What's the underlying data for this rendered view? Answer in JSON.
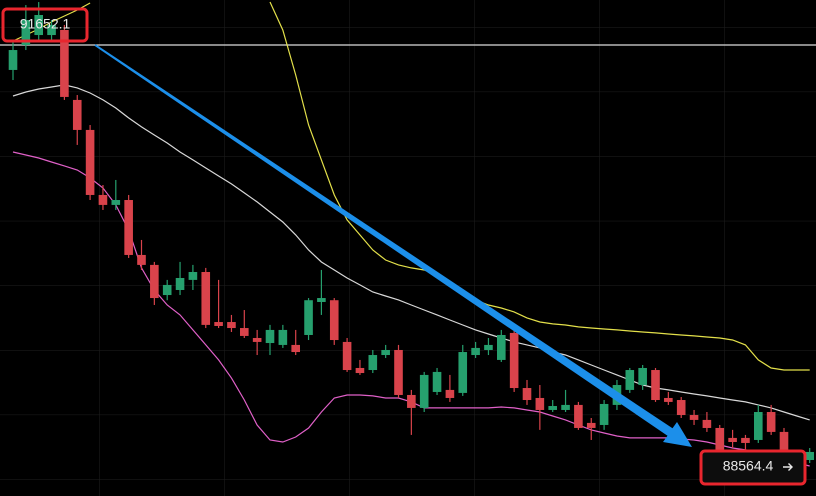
{
  "chart_data": {
    "type": "candlestick",
    "ylim": [
      88344,
      91982
    ],
    "up_color": "#26a06e",
    "down_color": "#d9434b",
    "candles": [
      [
        91469,
        91689,
        91395,
        91615
      ],
      [
        91652,
        91945,
        91615,
        91835
      ],
      [
        91725,
        91967,
        91689,
        91872
      ],
      [
        91725,
        91835,
        91689,
        91799
      ],
      [
        91762,
        91799,
        91249,
        91271
      ],
      [
        91249,
        91285,
        90919,
        91029
      ],
      [
        91029,
        91065,
        90515,
        90552
      ],
      [
        90552,
        90625,
        90442,
        90479
      ],
      [
        90479,
        90662,
        90442,
        90515
      ],
      [
        90515,
        90552,
        90090,
        90112
      ],
      [
        90112,
        90222,
        90002,
        90039
      ],
      [
        90039,
        90061,
        89745,
        89796
      ],
      [
        89818,
        89929,
        89780,
        89892
      ],
      [
        89855,
        90061,
        89818,
        89943
      ],
      [
        89929,
        90039,
        89855,
        89987
      ],
      [
        89987,
        90017,
        89576,
        89599
      ],
      [
        89620,
        89929,
        89576,
        89591
      ],
      [
        89620,
        89672,
        89547,
        89576
      ],
      [
        89576,
        89708,
        89503,
        89518
      ],
      [
        89503,
        89562,
        89378,
        89474
      ],
      [
        89466,
        89599,
        89378,
        89562
      ],
      [
        89452,
        89599,
        89430,
        89562
      ],
      [
        89452,
        89562,
        89378,
        89400
      ],
      [
        89525,
        89796,
        89488,
        89780
      ],
      [
        89767,
        90002,
        89672,
        89796
      ],
      [
        89780,
        89796,
        89452,
        89488
      ],
      [
        89474,
        89503,
        89254,
        89268
      ],
      [
        89283,
        89342,
        89232,
        89246
      ],
      [
        89268,
        89415,
        89246,
        89378
      ],
      [
        89378,
        89452,
        89356,
        89415
      ],
      [
        89415,
        89452,
        89063,
        89085
      ],
      [
        89085,
        89122,
        88792,
        88990
      ],
      [
        88990,
        89254,
        88960,
        89232
      ],
      [
        89107,
        89283,
        89085,
        89254
      ],
      [
        89122,
        89232,
        89034,
        89063
      ],
      [
        89100,
        89452,
        89078,
        89400
      ],
      [
        89378,
        89474,
        89356,
        89430
      ],
      [
        89415,
        89503,
        89378,
        89452
      ],
      [
        89342,
        89562,
        89327,
        89525
      ],
      [
        89540,
        89562,
        89107,
        89136
      ],
      [
        89136,
        89195,
        89012,
        89048
      ],
      [
        89063,
        89158,
        88829,
        88975
      ],
      [
        88975,
        89048,
        88960,
        89004
      ],
      [
        88975,
        89122,
        88960,
        89012
      ],
      [
        89012,
        89034,
        88829,
        88843
      ],
      [
        88880,
        88916,
        88755,
        88843
      ],
      [
        88865,
        89048,
        88829,
        89019
      ],
      [
        89012,
        89195,
        88975,
        89158
      ],
      [
        89122,
        89283,
        89100,
        89268
      ],
      [
        89158,
        89305,
        89122,
        89283
      ],
      [
        89268,
        89283,
        89034,
        89048
      ],
      [
        89063,
        89107,
        89012,
        89034
      ],
      [
        89048,
        89070,
        88916,
        88938
      ],
      [
        88938,
        88975,
        88865,
        88902
      ],
      [
        88902,
        88960,
        88814,
        88843
      ],
      [
        88843,
        88865,
        88667,
        88682
      ],
      [
        88770,
        88829,
        88696,
        88740
      ],
      [
        88770,
        88792,
        88682,
        88733
      ],
      [
        88755,
        89012,
        88733,
        88960
      ],
      [
        88960,
        89012,
        88792,
        88814
      ],
      [
        88814,
        88843,
        88572,
        88608
      ],
      [
        88645,
        88682,
        88572,
        88594
      ],
      [
        88608,
        88696,
        88586,
        88667
      ]
    ],
    "series": [
      {
        "color": "#d8d8d8",
        "values": [
          91278,
          91307,
          91329,
          91344,
          91359,
          91337,
          91300,
          91249,
          91190,
          91117,
          91051,
          90992,
          90933,
          90867,
          90809,
          90750,
          90691,
          90633,
          90567,
          90501,
          90427,
          90354,
          90259,
          90148,
          90060,
          90002,
          89943,
          89892,
          89840,
          89811,
          89782,
          89745,
          89708,
          89672,
          89635,
          89598,
          89562,
          89532,
          89503,
          89474,
          89452,
          89430,
          89400,
          89378,
          89342,
          89305,
          89268,
          89232,
          89195,
          89158,
          89136,
          89122,
          89107,
          89092,
          89078,
          89063,
          89048,
          89034,
          89012,
          88990,
          88960,
          88931,
          88902
        ]
      },
      {
        "color": "#e3e04a",
        "values": [
          91681,
          91725,
          91769,
          91821,
          91865,
          91909,
          91960,
          null,
          null,
          null,
          null,
          null,
          null,
          null,
          null,
          null,
          null,
          null,
          null,
          null,
          91967,
          91762,
          91432,
          91065,
          90809,
          90552,
          90369,
          90259,
          90148,
          90075,
          90039,
          90017,
          90002,
          89965,
          89892,
          89833,
          89782,
          89745,
          89723,
          89694,
          89650,
          89620,
          89606,
          89598,
          89584,
          89576,
          89569,
          89562,
          89554,
          89547,
          89540,
          89532,
          89525,
          89518,
          89510,
          89503,
          89488,
          89452,
          89342,
          89283,
          89268,
          89268,
          89268
        ]
      },
      {
        "color": "#e060c8",
        "values": [
          90867,
          90845,
          90823,
          90794,
          90765,
          90735,
          90677,
          90603,
          90479,
          90295,
          90017,
          89855,
          89745,
          89672,
          89562,
          89452,
          89342,
          89210,
          89048,
          88865,
          88755,
          88740,
          88777,
          88843,
          88960,
          89063,
          89085,
          89085,
          89078,
          89063,
          89063,
          89034,
          88990,
          88990,
          88990,
          88990,
          88990,
          88990,
          88997,
          88990,
          88975,
          88960,
          88931,
          88902,
          88865,
          88829,
          88806,
          88784,
          88770,
          88770,
          88770,
          88770,
          88762,
          88755,
          88740,
          88718,
          88696,
          88682,
          88667,
          88645,
          88623,
          88586,
          88564
        ]
      }
    ],
    "price_labels": [
      91652.1,
      88564.4
    ]
  }
}
